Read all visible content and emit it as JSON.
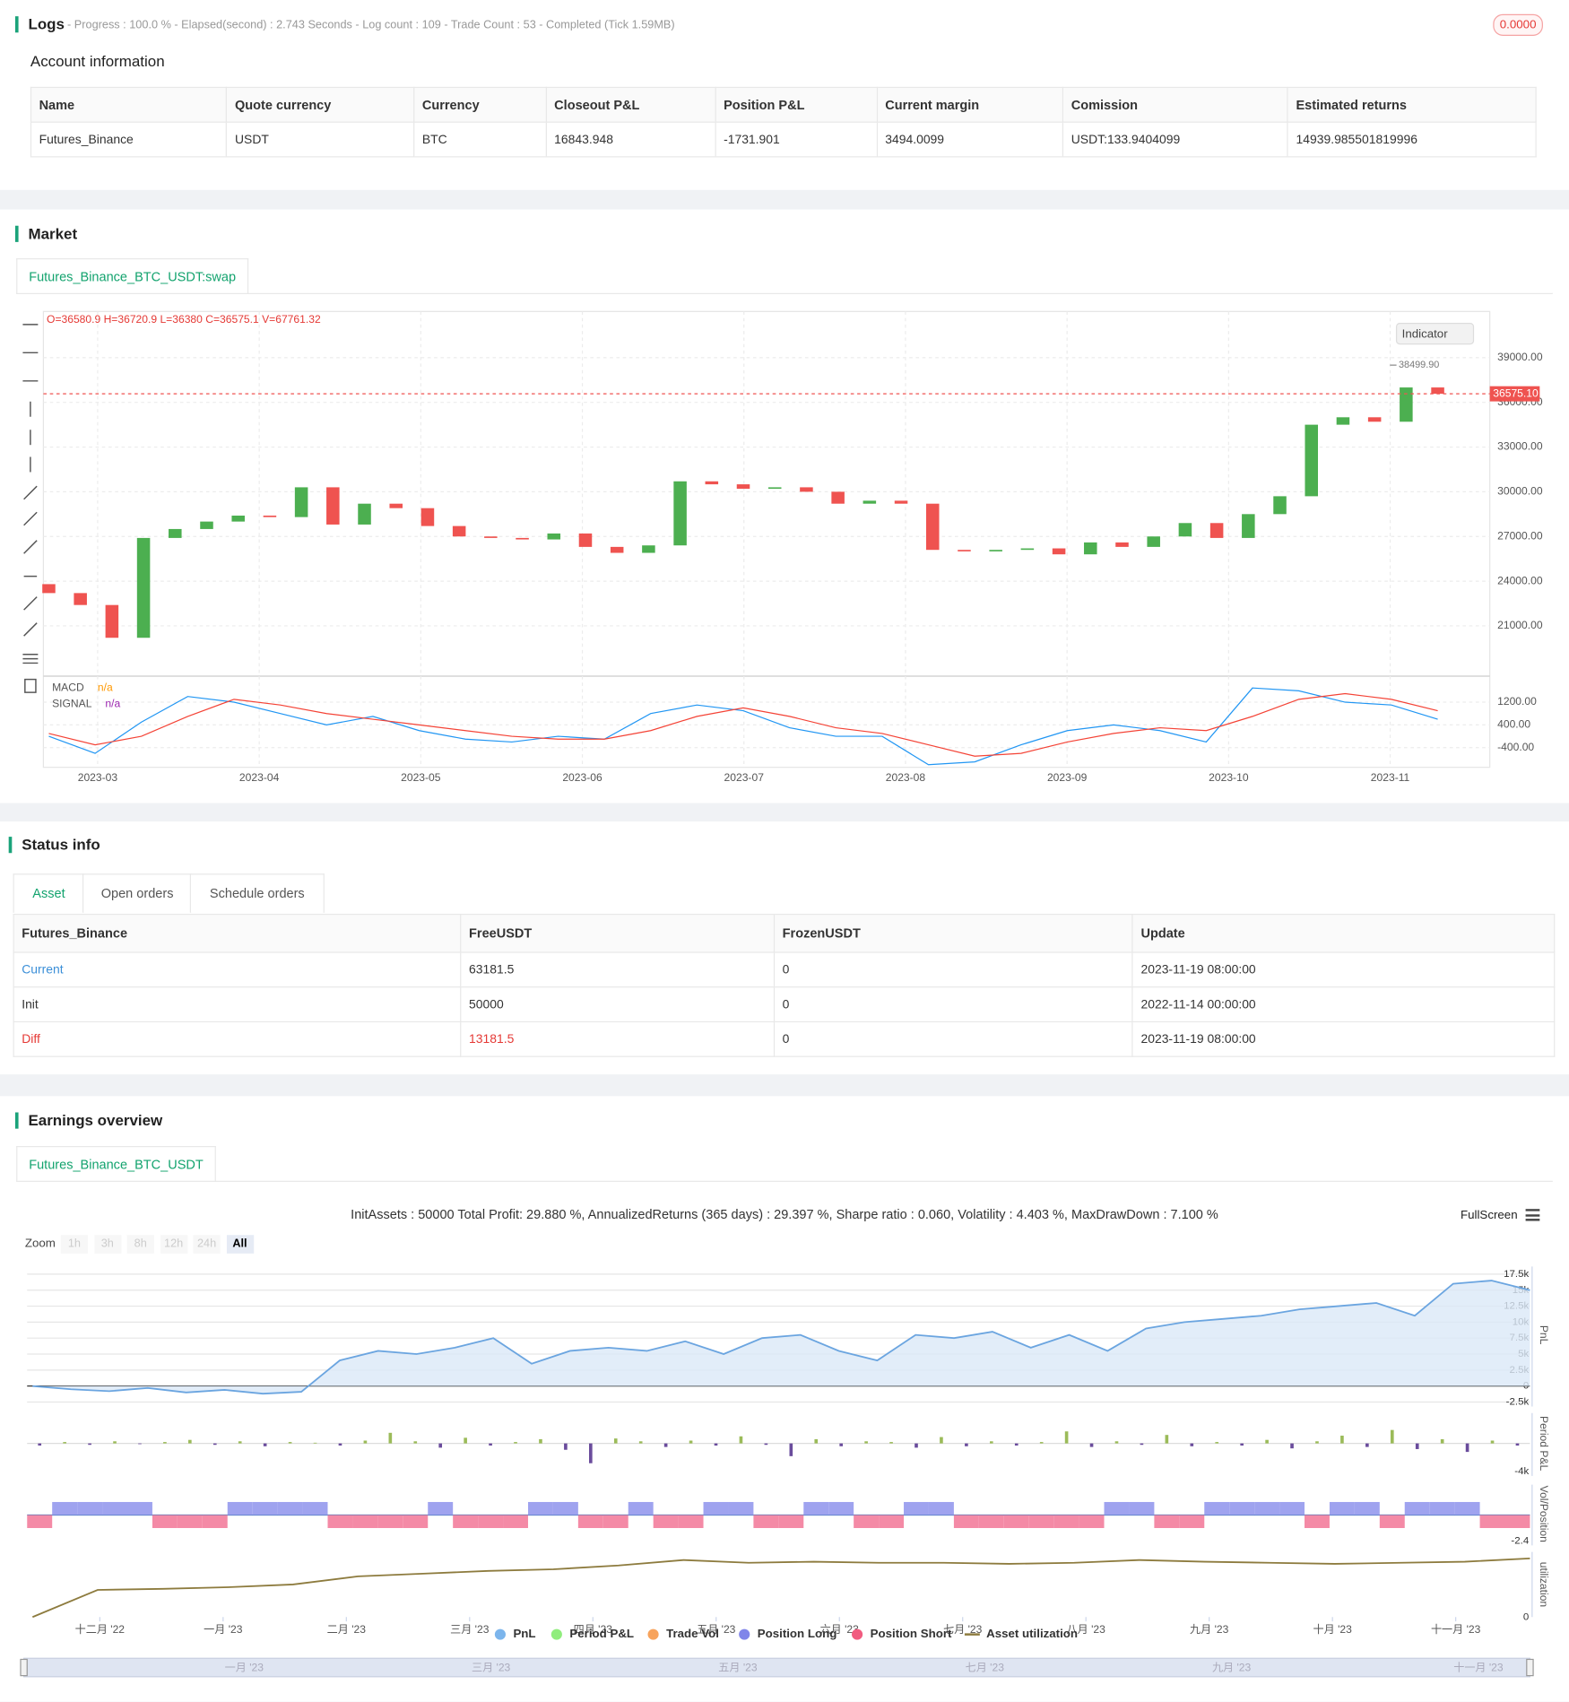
{
  "logs": {
    "title": "Logs",
    "summary": "- Progress : 100.0 % - Elapsed(second) : 2.743  Seconds - Log count : 109 - Trade Count : 53 - Completed (Tick 1.59MB)",
    "badge": "0.0000"
  },
  "account": {
    "title": "Account information",
    "headers": [
      "Name",
      "Quote currency",
      "Currency",
      "Closeout P&L",
      "Position P&L",
      "Current margin",
      "Comission",
      "Estimated returns"
    ],
    "rows": [
      [
        "Futures_Binance",
        "USDT",
        "BTC",
        "16843.948",
        "-1731.901",
        "3494.0099",
        "USDT:133.9404099",
        "14939.985501819996"
      ]
    ]
  },
  "market": {
    "title": "Market",
    "tab": "Futures_Binance_BTC_USDT:swap",
    "indicator_button": "Indicator"
  },
  "status": {
    "title": "Status info",
    "tabs": [
      "Asset",
      "Open orders",
      "Schedule orders"
    ],
    "headers": [
      "Futures_Binance",
      "FreeUSDT",
      "FrozenUSDT",
      "Update"
    ],
    "rows": [
      [
        "Current",
        "63181.5",
        "0",
        "2023-11-19 08:00:00"
      ],
      [
        "Init",
        "50000",
        "0",
        "2022-11-14 00:00:00"
      ],
      [
        "Diff",
        "13181.5",
        "0",
        "2023-11-19 08:00:00"
      ]
    ]
  },
  "earnings": {
    "title": "Earnings overview",
    "tab": "Futures_Binance_BTC_USDT",
    "summary": "InitAssets : 50000 Total Profit: 29.880 %, AnnualizedReturns (365 days) : 29.397 %, Sharpe ratio : 0.060, Volatility : 4.403 %, MaxDrawDown : 7.100 %",
    "fullscreen": "FullScreen",
    "zoom_label": "Zoom",
    "zoom_buttons": [
      "1h",
      "3h",
      "8h",
      "12h",
      "24h",
      "All"
    ],
    "x_labels": [
      "十二月 '22",
      "一月 '23",
      "二月 '23",
      "三月 '23",
      "四月 '23",
      "五月 '23",
      "六月 '23",
      "七月 '23",
      "八月 '23",
      "九月 '23",
      "十月 '23",
      "十一月 '23"
    ],
    "navigator_labels": [
      "一月 '23",
      "三月 '23",
      "五月 '23",
      "七月 '23",
      "九月 '23",
      "十一月 '23"
    ],
    "legend": [
      {
        "name": "PnL",
        "color": "#7cb5ec"
      },
      {
        "name": "Period P&L",
        "color": "#90ed7d"
      },
      {
        "name": "Trade Vol",
        "color": "#f7a35c"
      },
      {
        "name": "Position Long",
        "color": "#8085e9"
      },
      {
        "name": "Position Short",
        "color": "#f15c80"
      },
      {
        "name": "Asset utilization",
        "color": "#8d7b3e"
      }
    ]
  },
  "chart_data": [
    {
      "type": "candlestick",
      "ohlc_label": "O=36580.9 H=36720.9 L=36380 C=36575.1 V=67761.32",
      "x_labels": [
        "2023-03",
        "2023-04",
        "2023-05",
        "2023-06",
        "2023-07",
        "2023-08",
        "2023-09",
        "2023-10",
        "2023-11"
      ],
      "open": [
        23800,
        23200,
        22400,
        20200,
        26900,
        27500,
        28000,
        28400,
        28300,
        30300,
        27800,
        29200,
        28900,
        27700,
        27000,
        26900,
        26800,
        27200,
        26300,
        25900,
        26400,
        30700,
        30500,
        30200,
        30300,
        30000,
        29200,
        29400,
        29200,
        26100,
        26000,
        26100,
        26200,
        25800,
        26600,
        26300,
        27000,
        27900,
        26900,
        28500,
        29700,
        34500,
        35000,
        34700,
        37000
      ],
      "close": [
        23200,
        22400,
        20200,
        26900,
        27500,
        28000,
        28400,
        28300,
        30300,
        27800,
        29200,
        28900,
        27700,
        27000,
        26900,
        26800,
        27200,
        26300,
        25900,
        26400,
        30700,
        30500,
        30200,
        30300,
        30000,
        29200,
        29400,
        29200,
        26100,
        26000,
        26100,
        26200,
        25800,
        26600,
        26300,
        27000,
        27900,
        26900,
        28500,
        29700,
        34500,
        35000,
        34700,
        37000,
        36575.1
      ],
      "up_color": "#4caf50",
      "down_color": "#ef5350",
      "ylim": [
        17700,
        42100
      ],
      "yticks": [
        {
          "value": 21000,
          "label": "21000.00"
        },
        {
          "value": 24000,
          "label": "24000.00"
        },
        {
          "value": 27000,
          "label": "27000.00"
        },
        {
          "value": 30000,
          "label": "30000.00"
        },
        {
          "value": 33000,
          "label": "33000.00"
        },
        {
          "value": 36000,
          "label": "36000.00"
        },
        {
          "value": 39000,
          "label": "39000.00"
        }
      ],
      "last_price_label": "36575.10",
      "high": {
        "value": 38499.9,
        "label": "38499.90"
      },
      "grid": true
    },
    {
      "type": "line",
      "ylim": [
        -1090,
        2040
      ],
      "yticks": [
        {
          "value": -400,
          "label": "-400.00"
        },
        {
          "value": 400,
          "label": "400.00"
        },
        {
          "value": 1200,
          "label": "1200.00"
        }
      ],
      "series": [
        {
          "name": "MACD",
          "current": "n/a",
          "color": "#2196f3",
          "values": [
            0,
            -600,
            500,
            1400,
            1200,
            800,
            400,
            700,
            200,
            -100,
            -200,
            0,
            -100,
            800,
            1100,
            900,
            300,
            0,
            0,
            -1000,
            -900,
            -300,
            200,
            400,
            200,
            -200,
            1700,
            1600,
            1200,
            1100,
            600
          ]
        },
        {
          "name": "SIGNAL",
          "current": "n/a",
          "color": "#f44336",
          "values": [
            100,
            -300,
            0,
            700,
            1300,
            1100,
            800,
            600,
            400,
            200,
            0,
            -100,
            -100,
            200,
            700,
            1000,
            700,
            300,
            100,
            -300,
            -700,
            -600,
            -200,
            100,
            300,
            200,
            700,
            1300,
            1500,
            1300,
            900
          ]
        }
      ]
    },
    {
      "type": "area",
      "ylabel": "PnL",
      "color": "#6ba5e0",
      "ylim": [
        -3200,
        18700
      ],
      "yticks": [
        {
          "value": -2500,
          "label": "-2.5k"
        },
        0,
        {
          "value": 2500,
          "label": "2.5k"
        },
        {
          "value": 5000,
          "label": "5k"
        },
        {
          "value": 7500,
          "label": "7.5k"
        },
        {
          "value": 10000,
          "label": "10k"
        },
        {
          "value": 12500,
          "label": "12.5k"
        },
        {
          "value": 15000,
          "label": "15k"
        },
        {
          "value": 17500,
          "label": "17.5k"
        }
      ],
      "values": [
        0,
        -500,
        -800,
        -300,
        -1000,
        -600,
        -1200,
        -900,
        4000,
        5500,
        5000,
        6000,
        7500,
        3500,
        5500,
        6000,
        5500,
        7000,
        5000,
        7500,
        8000,
        5500,
        4000,
        8000,
        7500,
        8500,
        6000,
        8000,
        5500,
        9000,
        10000,
        10500,
        11000,
        12000,
        12500,
        13000,
        11000,
        16000,
        16500,
        15000
      ]
    },
    {
      "type": "bar",
      "ylabel": "Period P&L",
      "positive_color": "#9bbb59",
      "negative_color": "#6a4c9c",
      "ylim": [
        -4600,
        4300
      ],
      "yticks": [
        {
          "value": -4000,
          "label": "-4k"
        }
      ],
      "values": [
        -300,
        200,
        -200,
        300,
        -100,
        200,
        500,
        -200,
        300,
        -400,
        200,
        100,
        -300,
        400,
        1500,
        300,
        -600,
        800,
        -300,
        200,
        600,
        -900,
        -2800,
        700,
        300,
        -500,
        400,
        -300,
        1000,
        -200,
        -1800,
        600,
        -400,
        300,
        200,
        -600,
        900,
        -400,
        300,
        -300,
        200,
        1700,
        -500,
        300,
        -200,
        1200,
        -400,
        200,
        -300,
        500,
        -700,
        300,
        1100,
        -500,
        1900,
        -800,
        600,
        -1200,
        400,
        -300
      ]
    },
    {
      "type": "bar",
      "ylabel": "Vol/Position",
      "positive_color": "#9fa3ef",
      "negative_color": "#f48aa6",
      "ylim": [
        -2.8,
        2.8
      ],
      "yticks": [
        {
          "value": -2.4,
          "label": "-2.4"
        }
      ],
      "values": [
        -1.2,
        1.2,
        1.2,
        1.2,
        1.2,
        -1.2,
        -1.2,
        -1.2,
        1.2,
        1.2,
        1.2,
        1.2,
        -1.2,
        -1.2,
        -1.2,
        -1.2,
        1.2,
        -1.2,
        -1.2,
        -1.2,
        1.2,
        1.2,
        -1.2,
        -1.2,
        1.2,
        -1.2,
        -1.2,
        1.2,
        1.2,
        -1.2,
        -1.2,
        1.2,
        1.2,
        -1.2,
        -1.2,
        1.2,
        1.2,
        -1.2,
        -1.2,
        -1.2,
        -1.2,
        -1.2,
        -1.2,
        1.2,
        1.2,
        -1.2,
        -1.2,
        1.2,
        1.2,
        1.2,
        1.2,
        -1.2,
        1.2,
        1.2,
        -1.2,
        1.2,
        1.2,
        1.2,
        -1.2,
        -1.2
      ]
    },
    {
      "type": "line",
      "ylabel": "utilization",
      "color": "#8d7b3e",
      "ylim": [
        0,
        1.2
      ],
      "yticks": [
        0
      ],
      "values": [
        0,
        0.5,
        0.52,
        0.55,
        0.6,
        0.75,
        0.8,
        0.85,
        0.88,
        0.95,
        1.05,
        1.0,
        1.02,
        1.0,
        1.0,
        0.98,
        1.0,
        1.05,
        1.02,
        1.0,
        0.98,
        1.0,
        1.02,
        1.08
      ]
    }
  ]
}
